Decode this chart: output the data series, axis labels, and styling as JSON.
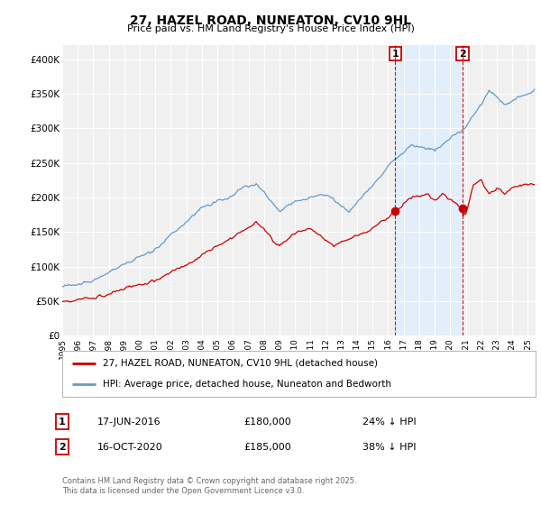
{
  "title": "27, HAZEL ROAD, NUNEATON, CV10 9HL",
  "subtitle": "Price paid vs. HM Land Registry's House Price Index (HPI)",
  "ylim": [
    0,
    420000
  ],
  "yticks": [
    0,
    50000,
    100000,
    150000,
    200000,
    250000,
    300000,
    350000,
    400000
  ],
  "ytick_labels": [
    "£0",
    "£50K",
    "£100K",
    "£150K",
    "£200K",
    "£250K",
    "£300K",
    "£350K",
    "£400K"
  ],
  "legend_line1": "27, HAZEL ROAD, NUNEATON, CV10 9HL (detached house)",
  "legend_line2": "HPI: Average price, detached house, Nuneaton and Bedworth",
  "transaction1_date": "17-JUN-2016",
  "transaction1_price": "£180,000",
  "transaction1_hpi": "24% ↓ HPI",
  "transaction2_date": "16-OCT-2020",
  "transaction2_price": "£185,000",
  "transaction2_hpi": "38% ↓ HPI",
  "footer": "Contains HM Land Registry data © Crown copyright and database right 2025.\nThis data is licensed under the Open Government Licence v3.0.",
  "red_color": "#cc0000",
  "blue_color": "#6699cc",
  "blue_fill_color": "#ddeeff",
  "background_color": "#ffffff",
  "plot_bg_color": "#f0f0f0",
  "grid_color": "#ffffff",
  "sale1_year": 2016.46,
  "sale1_price": 180000,
  "sale2_year": 2020.79,
  "sale2_price": 185000
}
